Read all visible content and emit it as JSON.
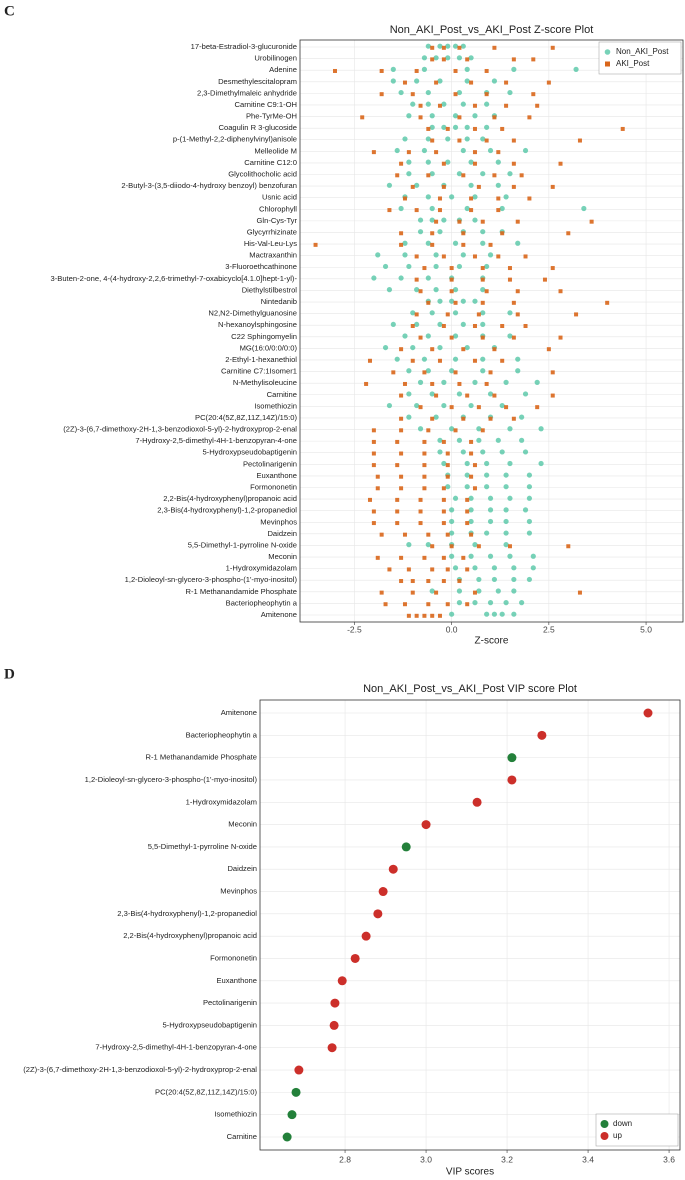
{
  "panel_labels": [
    "C",
    "D"
  ],
  "chart_data": [
    {
      "type": "strip",
      "title": "Non_AKI_Post_vs_AKI_Post Z-score Plot",
      "xlabel": "Z-score",
      "xlim": [
        -3.9,
        5.95
      ],
      "xticks": [
        -2.5,
        {
          "value": 0,
          "label": "0.0"
        },
        2.5,
        {
          "value": 5,
          "label": "5.0"
        }
      ],
      "grid": true,
      "legend": "top-right",
      "categories": [
        "17-beta-Estradiol-3-glucuronide",
        "Urobilinogen",
        "Adenine",
        "Desmethylescitalopram",
        "2,3-Dimethylmaleic anhydride",
        "Carnitine C9:1-OH",
        "Phe-TyrMe-OH",
        "Coagulin R 3-glucoside",
        "p-(1-Methyl-2,2-diphenylvinyl)anisole",
        "Melleolide M",
        "Carnitine C12:0",
        "Glycolithocholic acid",
        "2-Butyl-3-(3,5-diiodo-4-hydroxy benzoyl) benzofuran",
        "Usnic acid",
        "Chlorophyll",
        "Gln-Cys-Tyr",
        "Glycyrrhizinate",
        "His-Val-Leu-Lys",
        "Mactraxanthin",
        "3-Fluoroethcathinone",
        "3-Buten-2-one, 4-(4-hydroxy-2,2,6-trimethyl-7-oxabicyclo[4.1.0]hept-1-yl)-",
        "Diethylstilbestrol",
        "Nintedanib",
        "N2,N2-Dimethylguanosine",
        "N-hexanoylsphingosine",
        "C22 Sphingomyelin",
        "MG(16:0/0:0/0:0)",
        "2-Ethyl-1-hexanethiol",
        "Carnitine C7:1Isomer1",
        "N-Methylisoleucine",
        "Carnitine",
        "Isomethiozin",
        "PC(20:4(5Z,8Z,11Z,14Z)/15:0)",
        "(2Z)-3-(6,7-dimethoxy-2H-1,3-benzodioxol-5-yl)-2-hydroxyprop-2-enal",
        "7-Hydroxy-2,5-dimethyl-4H-1-benzopyran-4-one",
        "5-Hydroxypseudobaptigenin",
        "Pectolinarigenin",
        "Euxanthone",
        "Formononetin",
        "2,2-Bis(4-hydroxyphenyl)propanoic acid",
        "2,3-Bis(4-hydroxyphenyl)-1,2-propanediol",
        "Mevinphos",
        "Daidzein",
        "5,5-Dimethyl-1-pyrroline N-oxide",
        "Meconin",
        "1-Hydroxymidazolam",
        "1,2-Dioleoyl-sn-glycero-3-phospho-(1'-myo-inositol)",
        "R-1 Methanandamide Phosphate",
        "Bacteriopheophytin a",
        "Amitenone"
      ],
      "series": [
        {
          "name": "Non_AKI_Post",
          "color": "#3dbf9a",
          "marker": "circle",
          "values": [
            [
              -0.6,
              -0.3,
              -0.1,
              0.1,
              0.3
            ],
            [
              -0.7,
              -0.4,
              -0.1,
              0.2,
              0.5
            ],
            [
              -1.5,
              -0.7,
              0.4,
              1.6,
              3.2
            ],
            [
              -1.5,
              -0.9,
              -0.3,
              0.4,
              1.1
            ],
            [
              -1.3,
              -0.6,
              0.2,
              0.9,
              1.5
            ],
            [
              -1.0,
              -0.6,
              -0.2,
              0.3,
              0.9
            ],
            [
              -1.1,
              -0.5,
              0.1,
              0.6,
              1.1
            ],
            [
              -0.5,
              -0.2,
              0.1,
              0.4,
              0.9
            ],
            [
              -1.2,
              -0.6,
              -0.1,
              0.4,
              0.8
            ],
            [
              -1.4,
              -0.7,
              0.3,
              1.0,
              1.9
            ],
            [
              -1.1,
              -0.6,
              -0.1,
              0.5,
              1.2
            ],
            [
              -1.1,
              -0.5,
              0.2,
              0.8,
              1.5
            ],
            [
              -1.6,
              -0.9,
              -0.2,
              0.5,
              1.2
            ],
            [
              -1.2,
              -0.6,
              0.0,
              0.6,
              1.4
            ],
            [
              -1.3,
              -0.5,
              0.4,
              1.3,
              3.4
            ],
            [
              -0.8,
              -0.5,
              -0.2,
              0.2,
              0.6
            ],
            [
              -0.8,
              -0.3,
              0.3,
              0.8,
              1.3
            ],
            [
              -1.2,
              -0.6,
              0.1,
              0.8,
              1.7
            ],
            [
              -1.9,
              -1.2,
              -0.4,
              0.3,
              1.0
            ],
            [
              -1.7,
              -1.1,
              -0.4,
              0.2,
              0.9
            ],
            [
              -2.0,
              -1.3,
              -0.6,
              0.0,
              0.8
            ],
            [
              -1.6,
              -0.9,
              -0.4,
              0.1,
              0.8
            ],
            [
              -0.6,
              -0.3,
              0.0,
              0.3,
              0.6
            ],
            [
              -1.0,
              -0.5,
              0.1,
              0.8,
              1.5
            ],
            [
              -1.5,
              -0.9,
              -0.3,
              0.3,
              0.8
            ],
            [
              -1.2,
              -0.6,
              0.1,
              0.8,
              1.5
            ],
            [
              -1.7,
              -1.0,
              -0.3,
              0.4,
              1.1
            ],
            [
              -1.4,
              -0.7,
              0.1,
              0.8,
              1.7
            ],
            [
              -1.1,
              -0.6,
              0.0,
              0.8,
              1.7
            ],
            [
              -0.8,
              -0.2,
              0.6,
              1.4,
              2.2
            ],
            [
              -1.1,
              -0.5,
              0.2,
              1.0,
              1.9
            ],
            [
              -1.6,
              -0.9,
              -0.2,
              0.5,
              1.3
            ],
            [
              -1.1,
              -0.4,
              0.3,
              1.0,
              1.8
            ],
            [
              -0.8,
              0.0,
              0.7,
              1.5,
              2.3
            ],
            [
              -0.3,
              0.2,
              0.7,
              1.2,
              1.8
            ],
            [
              -0.3,
              0.3,
              0.8,
              1.3,
              1.9
            ],
            [
              -0.2,
              0.4,
              0.9,
              1.5,
              2.3
            ],
            [
              -0.1,
              0.4,
              0.9,
              1.4,
              2.0
            ],
            [
              -0.1,
              0.4,
              0.9,
              1.4,
              2.0
            ],
            [
              0.1,
              0.5,
              1.0,
              1.5,
              2.0
            ],
            [
              0.0,
              0.5,
              1.0,
              1.4,
              1.9
            ],
            [
              0.0,
              0.5,
              1.0,
              1.4,
              2.0
            ],
            [
              0.0,
              0.5,
              0.9,
              1.4,
              2.0
            ],
            [
              -1.1,
              -0.6,
              0.0,
              0.6,
              1.4
            ],
            [
              0.0,
              0.5,
              1.0,
              1.5,
              2.1
            ],
            [
              0.1,
              0.6,
              1.1,
              1.6,
              2.1
            ],
            [
              0.2,
              0.7,
              1.1,
              1.6,
              2.0
            ],
            [
              -0.5,
              0.2,
              0.7,
              1.2,
              1.6
            ],
            [
              0.2,
              0.6,
              1.0,
              1.4,
              1.8
            ],
            [
              0.0,
              0.9,
              1.1,
              1.3,
              1.6
            ]
          ]
        },
        {
          "name": "AKI_Post",
          "color": "#d9661a",
          "marker": "square",
          "values": [
            [
              -0.5,
              -0.2,
              0.2,
              1.1,
              2.6
            ],
            [
              -0.5,
              -0.2,
              0.4,
              1.6,
              2.1
            ],
            [
              -3.0,
              -1.8,
              -0.9,
              0.1,
              0.9
            ],
            [
              -1.2,
              -0.4,
              0.5,
              1.4,
              2.5
            ],
            [
              -1.8,
              -1.0,
              0.1,
              0.9,
              2.1
            ],
            [
              -0.8,
              -0.3,
              0.6,
              1.4,
              2.2
            ],
            [
              -2.3,
              -0.8,
              0.2,
              1.1,
              2.0
            ],
            [
              -0.6,
              -0.1,
              0.6,
              1.3,
              4.4
            ],
            [
              -0.5,
              0.2,
              0.9,
              1.6,
              3.3
            ],
            [
              -2.0,
              -1.1,
              -0.4,
              0.6,
              1.2
            ],
            [
              -1.3,
              -0.2,
              0.6,
              1.6,
              2.8
            ],
            [
              -1.4,
              -0.6,
              0.3,
              1.1,
              1.8
            ],
            [
              -1.0,
              -0.2,
              0.7,
              1.6,
              2.6
            ],
            [
              -1.2,
              -0.3,
              0.5,
              1.2,
              2.0
            ],
            [
              -1.6,
              -0.9,
              -0.3,
              0.5,
              1.2
            ],
            [
              -0.4,
              0.2,
              0.8,
              1.7,
              3.6
            ],
            [
              -1.3,
              -0.5,
              0.3,
              1.3,
              3.0
            ],
            [
              -3.5,
              -1.3,
              -0.5,
              0.3,
              1.0
            ],
            [
              -0.9,
              -0.2,
              0.6,
              1.2,
              1.9
            ],
            [
              -0.7,
              0.0,
              0.8,
              1.5,
              2.6
            ],
            [
              -0.9,
              0.0,
              0.8,
              1.5,
              2.4
            ],
            [
              -0.8,
              0.0,
              0.9,
              1.7,
              2.8
            ],
            [
              -0.6,
              0.1,
              0.8,
              1.6,
              4.0
            ],
            [
              -0.9,
              -0.1,
              0.7,
              1.7,
              3.2
            ],
            [
              -1.0,
              -0.2,
              0.6,
              1.3,
              1.9
            ],
            [
              -0.8,
              0.0,
              0.8,
              1.6,
              2.8
            ],
            [
              -1.3,
              -0.5,
              0.3,
              1.1,
              2.5
            ],
            [
              -2.1,
              -1.0,
              -0.3,
              0.6,
              1.3
            ],
            [
              -1.5,
              -0.7,
              0.1,
              1.0,
              2.6
            ],
            [
              -2.2,
              -1.2,
              -0.5,
              0.2,
              0.9
            ],
            [
              -1.3,
              -0.4,
              0.4,
              1.1,
              2.6
            ],
            [
              -0.8,
              0.0,
              0.7,
              1.4,
              2.2
            ],
            [
              -1.3,
              -0.5,
              0.3,
              1.0,
              1.6
            ],
            [
              -2.0,
              -1.3,
              -0.6,
              0.1,
              0.8
            ],
            [
              -2.0,
              -1.4,
              -0.7,
              -0.2,
              0.5
            ],
            [
              -2.0,
              -1.3,
              -0.7,
              -0.1,
              0.5
            ],
            [
              -2.0,
              -1.4,
              -0.7,
              -0.1,
              0.6
            ],
            [
              -1.9,
              -1.3,
              -0.7,
              -0.1,
              0.5
            ],
            [
              -1.9,
              -1.3,
              -0.7,
              -0.2,
              0.6
            ],
            [
              -2.1,
              -1.4,
              -0.8,
              -0.2,
              0.4
            ],
            [
              -2.0,
              -1.4,
              -0.8,
              -0.2,
              0.4
            ],
            [
              -2.0,
              -1.4,
              -0.8,
              -0.2,
              0.4
            ],
            [
              -1.8,
              -1.2,
              -0.6,
              -0.1,
              0.5
            ],
            [
              -0.5,
              0.0,
              0.7,
              1.5,
              3.0
            ],
            [
              -1.9,
              -1.3,
              -0.7,
              -0.2,
              0.3
            ],
            [
              -1.6,
              -1.1,
              -0.5,
              -0.1,
              0.4
            ],
            [
              -1.3,
              -1.0,
              -0.6,
              -0.2,
              0.2
            ],
            [
              -1.8,
              -1.0,
              -0.4,
              0.6,
              3.3
            ],
            [
              -1.7,
              -1.2,
              -0.6,
              -0.1,
              0.4
            ],
            [
              -1.1,
              -0.9,
              -0.7,
              -0.5,
              -0.3
            ]
          ]
        }
      ]
    },
    {
      "type": "dot",
      "title": "Non_AKI_Post_vs_AKI_Post VIP score Plot",
      "xlabel": "VIP scores",
      "xlim": [
        2.59,
        3.627
      ],
      "xticks": [
        2.8,
        {
          "value": 3,
          "label": "3.0"
        },
        3.2,
        3.4,
        3.6
      ],
      "grid": true,
      "legend": "bottom-right",
      "categories": [
        "Amitenone",
        "Bacteriopheophytin a",
        "R-1 Methanandamide Phosphate",
        "1,2-Dioleoyl-sn-glycero-3-phospho-(1'-myo-inositol)",
        "1-Hydroxymidazolam",
        "Meconin",
        "5,5-Dimethyl-1-pyrroline N-oxide",
        "Daidzein",
        "Mevinphos",
        "2,3-Bis(4-hydroxyphenyl)-1,2-propanediol",
        "2,2-Bis(4-hydroxyphenyl)propanoic acid",
        "Formononetin",
        "Euxanthone",
        "Pectolinarigenin",
        "5-Hydroxypseudobaptigenin",
        "7-Hydroxy-2,5-dimethyl-4H-1-benzopyran-4-one",
        "(2Z)-3-(6,7-dimethoxy-2H-1,3-benzodioxol-5-yl)-2-hydroxyprop-2-enal",
        "PC(20:4(5Z,8Z,11Z,14Z)/15:0)",
        "Isomethiozin",
        "Carnitine"
      ],
      "series": [
        {
          "name": "down",
          "color": "#23803a",
          "values": [
            null,
            null,
            3.212,
            null,
            null,
            null,
            2.951,
            null,
            null,
            null,
            null,
            null,
            null,
            null,
            null,
            null,
            null,
            2.679,
            2.669,
            2.657
          ]
        },
        {
          "name": "up",
          "color": "#cc2f2a",
          "values": [
            3.548,
            3.286,
            null,
            3.212,
            3.126,
            3.0,
            null,
            2.919,
            2.894,
            2.881,
            2.852,
            2.825,
            2.793,
            2.775,
            2.773,
            2.768,
            2.686,
            null,
            null,
            null
          ]
        }
      ]
    }
  ]
}
